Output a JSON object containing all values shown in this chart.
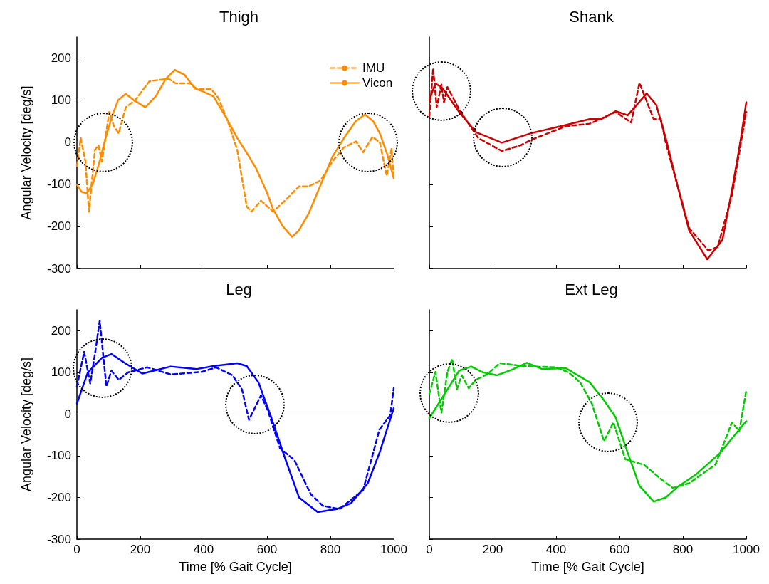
{
  "chart_data": [
    {
      "type": "line",
      "title": "Thigh",
      "ylabel": "Angular Velocity [deg/s]",
      "xlim": [
        0,
        1000
      ],
      "xticks": [
        0,
        200,
        400,
        600,
        800,
        1000
      ],
      "ylim": [
        -300,
        250
      ],
      "yticks": [
        -300,
        -200,
        -100,
        0,
        100,
        200
      ],
      "tick_labels": "y",
      "grid": false,
      "legend": "top right",
      "marker": "none",
      "ref_lines": [
        {
          "axis": "y",
          "value": 0,
          "color": "#000000"
        }
      ],
      "series": [
        {
          "name": "IMU",
          "color": "#ff8c00",
          "line_style": "dashed",
          "x": [
            0,
            12,
            27,
            38,
            57,
            68,
            79,
            102,
            117,
            132,
            154,
            184,
            229,
            289,
            312,
            357,
            379,
            424,
            446,
            476,
            506,
            536,
            551,
            581,
            619,
            656,
            701,
            731,
            769,
            806,
            843,
            881,
            903,
            933,
            956,
            978,
            993,
            1000
          ],
          "values": [
            -57,
            10,
            -46,
            -165,
            -18,
            -7,
            -46,
            72,
            38,
            21,
            83,
            100,
            145,
            151,
            140,
            140,
            126,
            126,
            106,
            50,
            -18,
            -153,
            -165,
            -139,
            -165,
            -139,
            -105,
            -105,
            -91,
            -46,
            -12,
            2,
            -24,
            13,
            -1,
            -80,
            -15,
            -86
          ]
        },
        {
          "name": "Vicon",
          "color": "#ff8c00",
          "line_style": "solid",
          "x": [
            0,
            15,
            31,
            50,
            70,
            87,
            110,
            130,
            154,
            180,
            216,
            250,
            280,
            309,
            340,
            372,
            400,
            431,
            470,
            506,
            540,
            566,
            600,
            619,
            650,
            679,
            700,
            731,
            770,
            806,
            843,
            880,
            909,
            935,
            956,
            980,
            1000
          ],
          "values": [
            -101,
            -118,
            -121,
            -100,
            -50,
            0,
            60,
            100,
            115,
            100,
            83,
            110,
            150,
            172,
            160,
            128,
            120,
            109,
            60,
            10,
            -30,
            -63,
            -120,
            -159,
            -200,
            -225,
            -210,
            -170,
            -100,
            -35,
            10,
            50,
            66,
            50,
            21,
            -30,
            -86
          ]
        }
      ]
    },
    {
      "type": "line",
      "title": "Shank",
      "xlim": [
        0,
        1000
      ],
      "xticks": [
        0,
        200,
        400,
        600,
        800,
        1000
      ],
      "ylim": [
        -300,
        250
      ],
      "yticks": [
        -300,
        -200,
        -100,
        0,
        100,
        200
      ],
      "tick_labels": false,
      "grid": false,
      "marker": "none",
      "ref_lines": [
        {
          "axis": "y",
          "value": 0,
          "color": "#000000"
        }
      ],
      "series": [
        {
          "color": "#cc0000",
          "line_style": "dashed",
          "x": [
            0,
            12,
            23,
            38,
            46,
            57,
            94,
            154,
            229,
            289,
            319,
            431,
            506,
            588,
            637,
            663,
            708,
            731,
            746,
            820,
            880,
            910,
            955,
            1000
          ],
          "values": [
            61,
            176,
            83,
            137,
            95,
            131,
            78,
            10,
            -21,
            -7,
            5,
            38,
            44,
            72,
            47,
            141,
            55,
            55,
            -1,
            -204,
            -257,
            -249,
            -125,
            72
          ]
        },
        {
          "color": "#cc0000",
          "line_style": "solid",
          "x": [
            0,
            19,
            42,
            94,
            147,
            229,
            319,
            431,
            506,
            543,
            588,
            626,
            686,
            716,
            746,
            783,
            820,
            877,
            925,
            955,
            981,
            1000
          ],
          "values": [
            100,
            140,
            128,
            72,
            24,
            -1,
            21,
            41,
            55,
            55,
            74,
            64,
            116,
            89,
            10,
            -103,
            -210,
            -278,
            -232,
            -114,
            -1,
            95
          ]
        }
      ]
    },
    {
      "type": "line",
      "title": "Leg",
      "xlabel": "Time [% Gait Cycle]",
      "ylabel": "Angular Velocity [deg/s]",
      "xlim": [
        0,
        1000
      ],
      "xticks": [
        0,
        200,
        400,
        600,
        800,
        1000
      ],
      "ylim": [
        -300,
        250
      ],
      "yticks": [
        -300,
        -200,
        -100,
        0,
        100,
        200
      ],
      "grid": false,
      "marker": "none",
      "ref_lines": [
        {
          "axis": "y",
          "value": 0,
          "color": "#000000"
        }
      ],
      "series": [
        {
          "color": "#0000ff",
          "line_style": "dashed",
          "x": [
            0,
            12,
            23,
            42,
            57,
            72,
            93,
            109,
            132,
            162,
            222,
            296,
            394,
            439,
            491,
            521,
            543,
            581,
            603,
            641,
            686,
            738,
            776,
            828,
            903,
            955,
            989,
            1000
          ],
          "values": [
            65,
            110,
            149,
            73,
            144,
            224,
            66,
            104,
            82,
            100,
            112,
            95,
            101,
            112,
            93,
            59,
            -14,
            45,
            8,
            -82,
            -110,
            -192,
            -220,
            -228,
            -183,
            -37,
            -3,
            62
          ]
        },
        {
          "color": "#0000ff",
          "line_style": "solid",
          "x": [
            0,
            34,
            79,
            109,
            154,
            207,
            296,
            379,
            431,
            506,
            536,
            573,
            611,
            656,
            701,
            760,
            820,
            865,
            918,
            955,
            1000
          ],
          "values": [
            25,
            99,
            135,
            144,
            121,
            97,
            114,
            108,
            115,
            122,
            115,
            76,
            -3,
            -104,
            -200,
            -235,
            -228,
            -214,
            -166,
            -93,
            14
          ]
        }
      ]
    },
    {
      "type": "line",
      "title": "Ext Leg",
      "xlabel": "Time [% Gait Cycle]",
      "xlim": [
        0,
        1000
      ],
      "xticks": [
        0,
        200,
        400,
        600,
        800,
        1000
      ],
      "ylim": [
        -300,
        250
      ],
      "yticks": [
        -300,
        -200,
        -100,
        0,
        100,
        200
      ],
      "tick_labels": "x",
      "grid": false,
      "marker": "none",
      "ref_lines": [
        {
          "axis": "y",
          "value": 0,
          "color": "#000000"
        }
      ],
      "series": [
        {
          "color": "#00cc00",
          "line_style": "dashed",
          "x": [
            0,
            19,
            38,
            57,
            72,
            87,
            102,
            124,
            147,
            184,
            222,
            296,
            401,
            439,
            476,
            513,
            551,
            581,
            618,
            678,
            731,
            768,
            820,
            903,
            955,
            978,
            1000
          ],
          "values": [
            48,
            101,
            3,
            101,
            132,
            59,
            93,
            62,
            82,
            96,
            122,
            115,
            112,
            100,
            76,
            25,
            -65,
            -20,
            -108,
            -122,
            -156,
            -177,
            -166,
            -121,
            -20,
            -41,
            56
          ]
        },
        {
          "color": "#00cc00",
          "line_style": "solid",
          "x": [
            0,
            57,
            94,
            132,
            169,
            214,
            259,
            308,
            356,
            431,
            506,
            551,
            588,
            626,
            663,
            708,
            746,
            783,
            843,
            918,
            1000
          ],
          "values": [
            -10,
            59,
            104,
            114,
            100,
            93,
            106,
            123,
            108,
            110,
            76,
            33,
            -8,
            -93,
            -172,
            -210,
            -200,
            -175,
            -144,
            -93,
            -17
          ]
        }
      ]
    }
  ]
}
